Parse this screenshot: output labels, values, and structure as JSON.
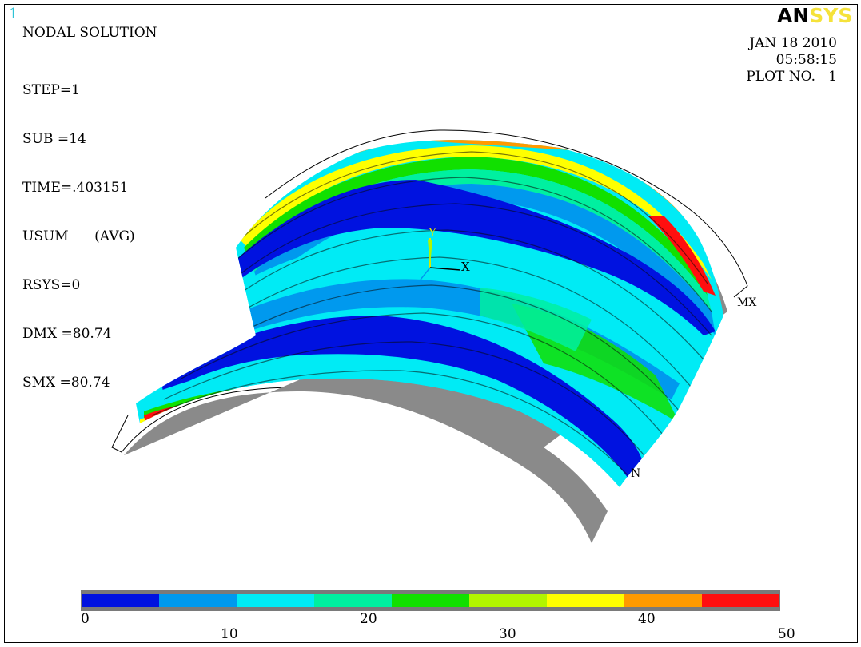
{
  "window_number": "1",
  "logo": {
    "an": "AN",
    "sys": "SYS",
    "an_color": "#000000",
    "sys_color": "#f5e23a"
  },
  "info": {
    "title": "NODAL SOLUTION",
    "lines": [
      "STEP=1",
      "SUB =14",
      "TIME=.403151",
      "USUM      (AVG)",
      "RSYS=0",
      "DMX =80.74",
      "SMX =80.74"
    ]
  },
  "plot_info": {
    "date": "JAN 18 2010",
    "time": "05:58:15",
    "plot_no": "PLOT NO.   1"
  },
  "triad": {
    "y_label": "Y",
    "x_label": "X"
  },
  "markers": {
    "max": "MX",
    "min": "N"
  },
  "legend": {
    "colors": [
      "#0012e0",
      "#0099ee",
      "#00ebf5",
      "#00f0a0",
      "#11e000",
      "#b2f500",
      "#ffff00",
      "#ff9a00",
      "#ff0f0f"
    ],
    "labels_top": [
      "0",
      "20",
      "40"
    ],
    "labels_bottom": [
      "10",
      "30",
      "50"
    ]
  },
  "model_colors": {
    "blue": "#0012e0",
    "mid_blue": "#0099ee",
    "cyan": "#00ebf5",
    "teal": "#00f0a0",
    "green": "#11e000",
    "lime": "#b2f500",
    "yellow": "#ffff00",
    "orange": "#ff9a00",
    "red": "#ff0f0f",
    "gray": "#8a8a8a"
  }
}
